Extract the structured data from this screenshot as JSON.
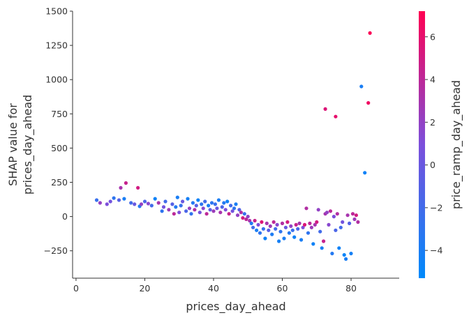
{
  "chart_data": {
    "type": "scatter",
    "xlabel": "prices_day_ahead",
    "ylabel": [
      "SHAP value for",
      "prices_day_ahead"
    ],
    "colorbar_label": "price_ramp_day_ahead",
    "xlim": [
      -1,
      94
    ],
    "ylim": [
      -450,
      1500
    ],
    "x_ticks": [
      0,
      20,
      40,
      60,
      80
    ],
    "y_ticks": [
      -250,
      0,
      250,
      500,
      750,
      1000,
      1250,
      1500
    ],
    "y_tick_labels": [
      "−250",
      "0",
      "250",
      "500",
      "750",
      "1000",
      "1250",
      "1500"
    ],
    "color_range": [
      -5.3,
      7.2
    ],
    "colorbar_ticks": [
      -4,
      -2,
      0,
      2,
      4,
      6
    ],
    "colorbar_tick_labels": [
      "−4",
      "−2",
      "0",
      "2",
      "4",
      "6"
    ],
    "colormap": [
      "#008afb",
      "#7c4fdb",
      "#ff0052"
    ],
    "grid": false,
    "points": [
      [
        6.0,
        120,
        -2.5
      ],
      [
        7.0,
        100,
        2.0
      ],
      [
        9.0,
        90,
        1.0
      ],
      [
        10.0,
        110,
        0.5
      ],
      [
        11.0,
        135,
        -3.0
      ],
      [
        12.5,
        120,
        -1.0
      ],
      [
        13.0,
        210,
        3.0
      ],
      [
        14.0,
        130,
        -4.0
      ],
      [
        14.5,
        245,
        4.5
      ],
      [
        16.0,
        100,
        -2.0
      ],
      [
        17.0,
        90,
        0.0
      ],
      [
        18.0,
        210,
        5.0
      ],
      [
        18.5,
        75,
        -3.5
      ],
      [
        19.0,
        90,
        2.0
      ],
      [
        20.0,
        110,
        -1.5
      ],
      [
        21.0,
        95,
        1.5
      ],
      [
        22.0,
        80,
        -2.0
      ],
      [
        23.0,
        130,
        -4.5
      ],
      [
        24.0,
        100,
        3.0
      ],
      [
        25.0,
        40,
        -3.0
      ],
      [
        25.5,
        70,
        0.5
      ],
      [
        26.0,
        110,
        -2.0
      ],
      [
        27.0,
        50,
        2.5
      ],
      [
        28.0,
        90,
        -1.0
      ],
      [
        28.5,
        20,
        4.0
      ],
      [
        29.0,
        70,
        -3.5
      ],
      [
        29.5,
        140,
        -4.0
      ],
      [
        30.0,
        30,
        1.0
      ],
      [
        30.5,
        80,
        -2.5
      ],
      [
        31.0,
        110,
        0.0
      ],
      [
        32.0,
        40,
        -1.5
      ],
      [
        32.5,
        130,
        -4.2
      ],
      [
        33.0,
        60,
        2.0
      ],
      [
        33.5,
        20,
        -2.8
      ],
      [
        34.0,
        100,
        -3.5
      ],
      [
        34.5,
        50,
        3.5
      ],
      [
        35.0,
        80,
        -1.0
      ],
      [
        35.5,
        120,
        -4.5
      ],
      [
        36.0,
        30,
        0.5
      ],
      [
        36.5,
        90,
        -3.0
      ],
      [
        37.0,
        60,
        1.5
      ],
      [
        37.5,
        110,
        -2.0
      ],
      [
        38.0,
        20,
        4.0
      ],
      [
        38.5,
        80,
        -4.0
      ],
      [
        39.0,
        50,
        -0.5
      ],
      [
        39.5,
        100,
        -3.2
      ],
      [
        40.0,
        40,
        2.5
      ],
      [
        40.5,
        90,
        -2.5
      ],
      [
        41.0,
        60,
        0.0
      ],
      [
        41.5,
        120,
        -4.0
      ],
      [
        42.0,
        30,
        3.0
      ],
      [
        42.5,
        70,
        -1.5
      ],
      [
        43.0,
        100,
        -3.5
      ],
      [
        43.5,
        50,
        1.0
      ],
      [
        44.0,
        110,
        -4.5
      ],
      [
        44.5,
        20,
        4.5
      ],
      [
        45.0,
        80,
        -2.0
      ],
      [
        45.5,
        40,
        0.5
      ],
      [
        46.0,
        60,
        -3.0
      ],
      [
        46.5,
        90,
        -4.0
      ],
      [
        47.0,
        10,
        2.0
      ],
      [
        47.5,
        50,
        -1.0
      ],
      [
        48.0,
        30,
        3.5
      ],
      [
        48.5,
        -10,
        5.0
      ],
      [
        49.0,
        20,
        -2.5
      ],
      [
        49.5,
        -20,
        4.0
      ],
      [
        50.0,
        0,
        2.0
      ],
      [
        50.5,
        -30,
        3.0
      ],
      [
        51.0,
        -50,
        -3.5
      ],
      [
        51.5,
        -80,
        -2.0
      ],
      [
        52.0,
        -30,
        4.5
      ],
      [
        52.5,
        -100,
        -4.0
      ],
      [
        53.0,
        -60,
        1.0
      ],
      [
        53.5,
        -120,
        -3.0
      ],
      [
        54.0,
        -40,
        5.5
      ],
      [
        54.5,
        -90,
        -2.5
      ],
      [
        55.0,
        -160,
        -4.5
      ],
      [
        55.5,
        -50,
        3.0
      ],
      [
        56.0,
        -100,
        -1.0
      ],
      [
        56.5,
        -70,
        2.5
      ],
      [
        57.0,
        -130,
        -3.8
      ],
      [
        57.5,
        -40,
        4.0
      ],
      [
        58.0,
        -90,
        -2.0
      ],
      [
        58.5,
        -60,
        1.5
      ],
      [
        59.0,
        -180,
        -4.2
      ],
      [
        59.5,
        -110,
        -3.0
      ],
      [
        60.0,
        -50,
        3.5
      ],
      [
        60.5,
        -160,
        -4.0
      ],
      [
        61.0,
        -80,
        0.0
      ],
      [
        61.5,
        -40,
        5.0
      ],
      [
        62.0,
        -120,
        -3.5
      ],
      [
        62.5,
        -70,
        2.0
      ],
      [
        63.0,
        -100,
        -2.5
      ],
      [
        63.5,
        -150,
        -4.5
      ],
      [
        64.0,
        -60,
        4.5
      ],
      [
        64.5,
        -90,
        -1.5
      ],
      [
        65.0,
        -50,
        3.0
      ],
      [
        65.5,
        -170,
        -4.0
      ],
      [
        66.0,
        -80,
        1.0
      ],
      [
        66.5,
        -60,
        5.5
      ],
      [
        67.0,
        60,
        3.5
      ],
      [
        67.5,
        -120,
        -3.0
      ],
      [
        68.0,
        -50,
        4.0
      ],
      [
        68.5,
        -80,
        2.5
      ],
      [
        69.0,
        -200,
        -4.5
      ],
      [
        69.5,
        -60,
        3.0
      ],
      [
        70.0,
        -40,
        5.0
      ],
      [
        70.5,
        50,
        2.0
      ],
      [
        71.0,
        -110,
        -2.0
      ],
      [
        71.5,
        -230,
        -4.0
      ],
      [
        72.0,
        -180,
        4.5
      ],
      [
        72.5,
        20,
        3.0
      ],
      [
        73.0,
        30,
        2.0
      ],
      [
        73.5,
        -60,
        1.5
      ],
      [
        74.0,
        40,
        4.0
      ],
      [
        74.5,
        -270,
        -3.5
      ],
      [
        75.0,
        0,
        1.0
      ],
      [
        75.5,
        -100,
        -1.5
      ],
      [
        76.0,
        20,
        3.5
      ],
      [
        76.5,
        -230,
        -4.5
      ],
      [
        77.0,
        -80,
        -2.0
      ],
      [
        77.5,
        -40,
        0.5
      ],
      [
        78.0,
        -280,
        -4.8
      ],
      [
        78.5,
        -310,
        -4.0
      ],
      [
        79.0,
        10,
        3.0
      ],
      [
        79.5,
        -50,
        -1.0
      ],
      [
        80.0,
        -270,
        -4.2
      ],
      [
        80.5,
        20,
        4.0
      ],
      [
        81.0,
        -20,
        2.5
      ],
      [
        81.5,
        10,
        5.0
      ],
      [
        82.0,
        -40,
        3.5
      ],
      [
        83.0,
        950,
        -4.0
      ],
      [
        84.0,
        320,
        -4.5
      ],
      [
        72.5,
        785,
        5.5
      ],
      [
        75.5,
        730,
        6.0
      ],
      [
        85.0,
        830,
        6.5
      ],
      [
        85.5,
        1340,
        7.0
      ]
    ]
  }
}
